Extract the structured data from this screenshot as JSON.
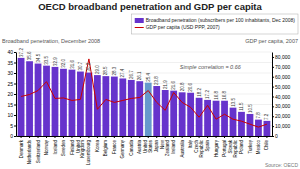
{
  "chart_data": {
    "type": "bar",
    "title": "OECD broadband penetration and GDP per capita",
    "ylabel": "Broadband penetration, December 2008",
    "y2label": "GDP per capita, 2007",
    "annotations": [
      "Simple correlation = 0.66",
      "Source: OECD"
    ],
    "categories": [
      "Denmark",
      "Netherlands",
      "Switzerland",
      "Norway",
      "Iceland",
      "Sweden",
      "Finland",
      "United\nKingdom",
      "Luxembourg",
      "Korea",
      "Belgium",
      "France",
      "Germany",
      "Canada",
      "Austria",
      "United\nStates",
      "Japan",
      "New\nZealand",
      "Ireland",
      "Australia",
      "Italy",
      "Czech\nRepublic",
      "Spain",
      "Hungary",
      "Portugal",
      "Slovak\nRepublic",
      "Poland",
      "Turkey",
      "Mexico",
      "Chile"
    ],
    "series": [
      {
        "name": "Broadband penetration (subscribers per 100 inhabitants, Dec 2008)",
        "type": "bar",
        "color": "#6633cc",
        "colors": [
          "#6633cc",
          "#6633cc",
          "#6633cc",
          "#6633cc",
          "#6633cc",
          "#6633cc",
          "#6633cc",
          "#6633cc",
          "#6633cc",
          "#6633cc",
          "#6633cc",
          "#6633cc",
          "#6633cc",
          "#6633cc",
          "#6633cc",
          "#6699cc",
          "#6633cc",
          "#6633cc",
          "#6633cc",
          "#6633cc",
          "#6633cc",
          "#6633cc",
          "#6633cc",
          "#6633cc",
          "#6633cc",
          "#6633cc",
          "#6633cc",
          "#6633cc",
          "#6633cc",
          "#6633cc"
        ],
        "values": [
          37.2,
          35.6,
          34.5,
          33.5,
          32.9,
          32.0,
          31.6,
          30.7,
          30.2,
          29.0,
          28.5,
          28.3,
          27.4,
          26.7,
          26.1,
          25.4,
          23.8,
          21.9,
          21.6,
          20.8,
          20.6,
          18.2,
          17.2,
          16.8,
          16.8,
          13.5,
          11.5,
          10.5,
          7.8,
          7.2
        ],
        "value_labels": [
          "37.2",
          "35.6",
          "34.5",
          "33.5",
          "32.9",
          "32.0",
          "31.6",
          "30.7",
          "30.2",
          "29.0",
          "28.5",
          "28.3",
          "27.4",
          "26.7",
          "26.1",
          "25.4",
          "23.8",
          "21.9",
          "21.6",
          "20.8",
          "20.6",
          "18.2",
          "17.2",
          "16.8",
          "16.8",
          "13.5",
          "11.5",
          "10.5",
          "7.8",
          "7.2"
        ]
      },
      {
        "name": "GDP per capita (USD PPP, 2007)",
        "type": "line",
        "color": "#cc0000",
        "axis": "y2",
        "values": [
          40000,
          42000,
          46000,
          55000,
          38000,
          38500,
          36000,
          37000,
          78000,
          27000,
          37000,
          34000,
          36000,
          38000,
          39000,
          46000,
          34000,
          26000,
          44000,
          34000,
          29000,
          19000,
          31000,
          17000,
          22000,
          17000,
          15000,
          12000,
          9000,
          12000
        ]
      }
    ],
    "data_labels": true,
    "ylim": [
      0,
      40
    ],
    "yticks": [
      0,
      5,
      10,
      15,
      20,
      25,
      30,
      35,
      40
    ],
    "y2lim": [
      0,
      85000
    ],
    "y2ticks": [
      0,
      {
        "value": 10000,
        "label": "10,000"
      },
      {
        "value": 20000,
        "label": "20,000"
      },
      {
        "value": 30000,
        "label": "30,000"
      },
      {
        "value": 40000,
        "label": "40,000"
      },
      {
        "value": 50000,
        "label": "50,000"
      },
      {
        "value": 60000,
        "label": "60,000"
      },
      {
        "value": 70000,
        "label": "70,000"
      },
      {
        "value": 80000,
        "label": "80,000"
      }
    ],
    "grid": true,
    "legend": "upper right"
  }
}
